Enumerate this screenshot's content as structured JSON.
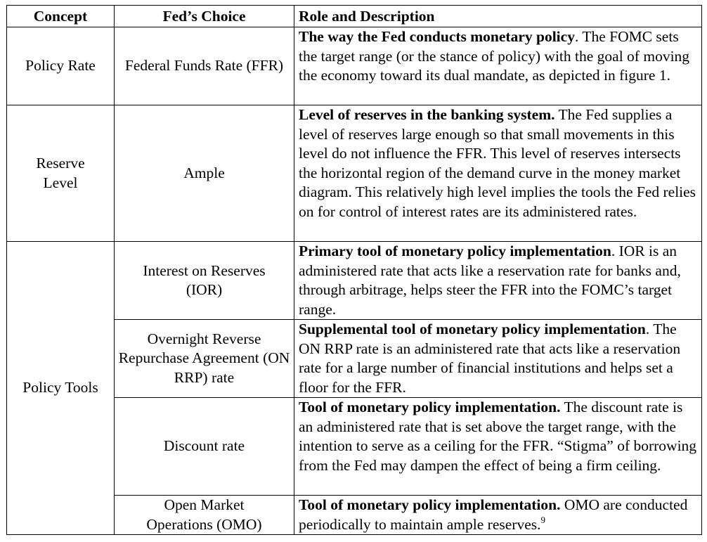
{
  "headers": {
    "concept": "Concept",
    "choice": "Fed’s Choice",
    "role": "Role and Description"
  },
  "rows": [
    {
      "concept": "Policy Rate",
      "choice": "Federal Funds Rate (FFR)",
      "lead": "The way the Fed conducts monetary policy",
      "desc": ". The FOMC sets the target range (or the stance of policy) with the goal of moving the economy toward its dual mandate, as depicted in figure 1.",
      "footnote": ""
    },
    {
      "concept": "Reserve Level",
      "choice": "Ample",
      "lead": "Level of reserves in the banking system.",
      "desc": " The Fed supplies a level of reserves large enough so that small movements in this level do not influence the FFR. This level of reserves intersects the horizontal region of the demand curve in the money market diagram. This relatively high level implies the tools the Fed relies on for control of interest rates are its administered rates.",
      "footnote": ""
    },
    {
      "concept": "Policy Tools",
      "choice": "Interest on Reserves (IOR)",
      "lead": "Primary tool of monetary policy implementation",
      "desc": ". IOR is an administered rate that acts like a reservation rate for banks and, through arbitrage, helps steer the FFR into the FOMC’s target range.",
      "footnote": ""
    },
    {
      "choice": "Overnight Reverse Repurchase Agreement (ON RRP) rate",
      "lead": "Supplemental tool of monetary policy implementation",
      "desc": ". The ON RRP rate is an administered rate that acts like a reservation rate for a large number of financial institutions and helps set a floor for the FFR.",
      "footnote": ""
    },
    {
      "choice": "Discount rate",
      "lead": "Tool of monetary policy implementation.",
      "desc": " The discount rate is an administered rate that is set above the target range, with the intention to serve as a ceiling for the FFR. “Stigma” of borrowing from the Fed may dampen the effect of being a firm ceiling.",
      "footnote": ""
    },
    {
      "choice": "Open Market Operations (OMO)",
      "lead": "Tool of monetary policy implementation.",
      "desc": "  OMO are conducted periodically to maintain ample reserves.",
      "footnote": "9"
    }
  ]
}
